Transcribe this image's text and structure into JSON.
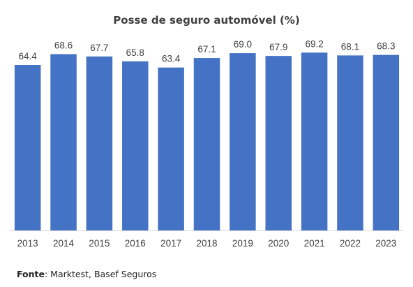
{
  "chart_data": {
    "type": "bar",
    "title": "Posse de seguro automóvel (%)",
    "categories": [
      "2013",
      "2014",
      "2015",
      "2016",
      "2017",
      "2018",
      "2019",
      "2020",
      "2021",
      "2022",
      "2023"
    ],
    "values": [
      64.4,
      68.6,
      67.7,
      65.8,
      63.4,
      67.1,
      69.0,
      67.9,
      69.2,
      68.1,
      68.3
    ],
    "value_labels": [
      "64.4",
      "68.6",
      "67.7",
      "65.8",
      "63.4",
      "67.1",
      "69.0",
      "67.9",
      "69.2",
      "68.1",
      "68.3"
    ],
    "bar_color": "#4472C4",
    "xlabel": "",
    "ylabel": "",
    "ylim": [
      0,
      75
    ],
    "grid": false,
    "legend": "none"
  },
  "source": {
    "label": "Fonte",
    "text": ": Marktest, Basef Seguros"
  }
}
